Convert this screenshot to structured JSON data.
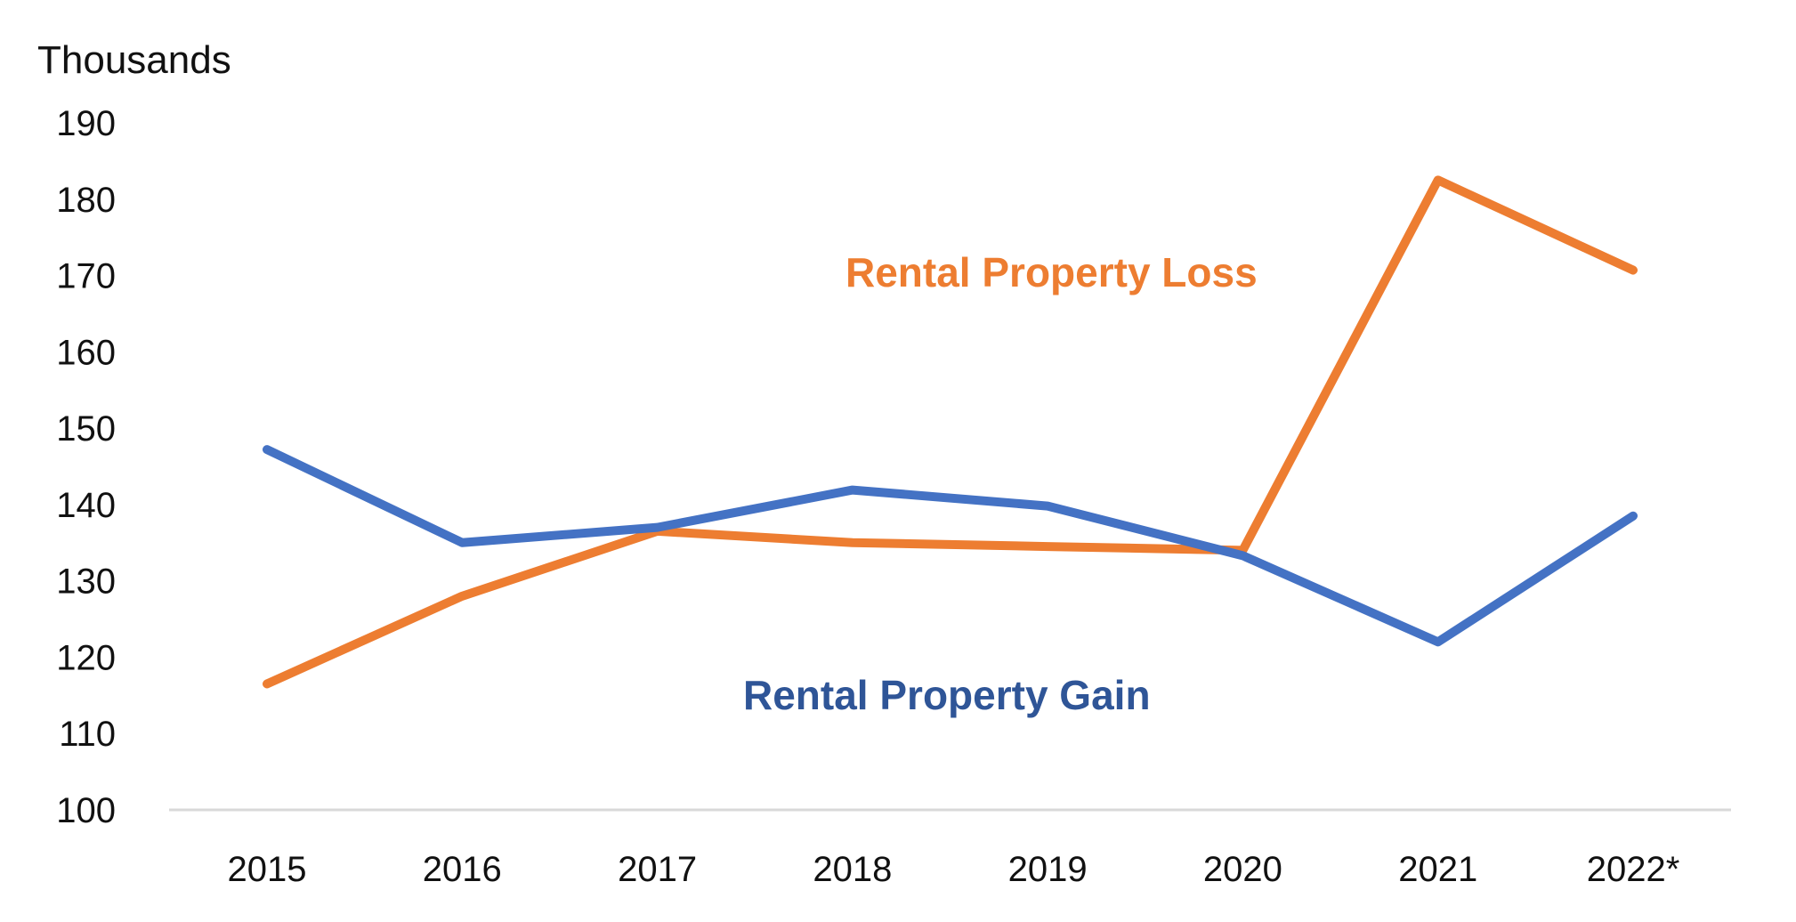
{
  "chart_data": {
    "type": "line",
    "y_unit_label": "Thousands",
    "x": [
      "2015",
      "2016",
      "2017",
      "2018",
      "2019",
      "2020",
      "2021",
      "2022*"
    ],
    "y_ticks": [
      "100",
      "110",
      "120",
      "130",
      "140",
      "150",
      "160",
      "170",
      "180",
      "190"
    ],
    "ylim": [
      100,
      190
    ],
    "grid": false,
    "legend": "inline labels",
    "series": [
      {
        "name": "Rental Property Loss",
        "color": "#ED7D31",
        "values": [
          116.5,
          128,
          136.5,
          135,
          134.5,
          134,
          182.5,
          170.7
        ]
      },
      {
        "name": "Rental Property Gain",
        "color": "#4472C4",
        "label_color": "#2F5597",
        "values": [
          147.2,
          135,
          137,
          141.9,
          139.8,
          133.3,
          122,
          138.5
        ]
      }
    ]
  }
}
